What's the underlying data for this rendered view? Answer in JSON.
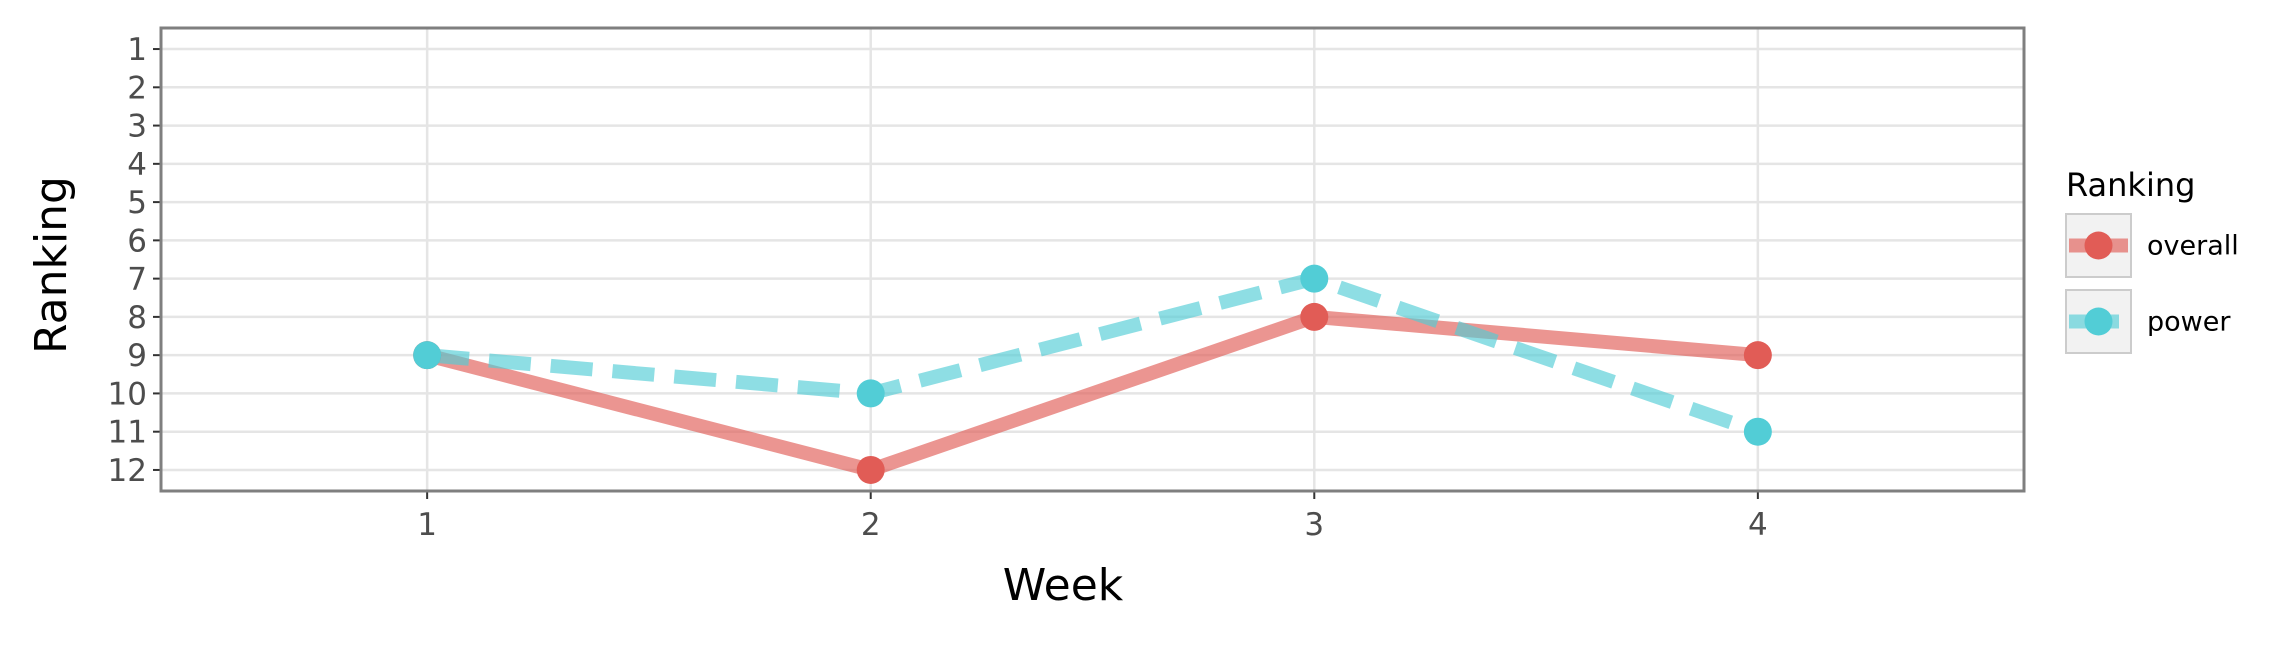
{
  "chart_data": {
    "type": "line",
    "title": "",
    "xlabel": "Week",
    "ylabel": "Ranking",
    "x": [
      1,
      2,
      3,
      4
    ],
    "xticks": [
      "1",
      "2",
      "3",
      "4"
    ],
    "xlim": [
      0.4,
      4.6
    ],
    "yticks": [
      "1",
      "2",
      "3",
      "4",
      "5",
      "6",
      "7",
      "8",
      "9",
      "10",
      "11",
      "12"
    ],
    "ylim": [
      12.55,
      0.45
    ],
    "y_reversed": true,
    "grid": true,
    "legend": {
      "title": "Ranking",
      "position": "right"
    },
    "series": [
      {
        "name": "overall",
        "values": [
          9,
          12,
          8,
          9
        ],
        "color": "#e15c56",
        "line_style": "solid"
      },
      {
        "name": "power",
        "values": [
          9,
          10,
          7,
          11
        ],
        "color": "#52cdd6",
        "line_style": "dashed"
      }
    ]
  }
}
